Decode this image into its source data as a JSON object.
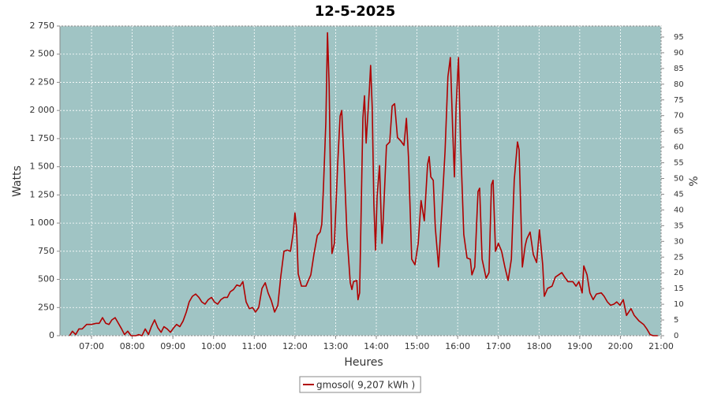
{
  "chart_data": {
    "type": "line",
    "title": "12-5-2025",
    "x_label": "Heures",
    "y_label": "Watts",
    "y2_label": "%",
    "xlim": [
      6.224,
      21.0
    ],
    "xticks": [
      {
        "value": 7,
        "label": "07:00"
      },
      {
        "value": 8,
        "label": "08:00"
      },
      {
        "value": 9,
        "label": "09:00"
      },
      {
        "value": 10,
        "label": "10:00"
      },
      {
        "value": 11,
        "label": "11:00"
      },
      {
        "value": 12,
        "label": "12:00"
      },
      {
        "value": 13,
        "label": "13:00"
      },
      {
        "value": 14,
        "label": "14:00"
      },
      {
        "value": 15,
        "label": "15:00"
      },
      {
        "value": 16,
        "label": "16:00"
      },
      {
        "value": 17,
        "label": "17:00"
      },
      {
        "value": 18,
        "label": "18:00"
      },
      {
        "value": 19,
        "label": "19:00"
      },
      {
        "value": 20,
        "label": "20:00"
      },
      {
        "value": 21,
        "label": "21:00"
      }
    ],
    "ylim": [
      0,
      2750
    ],
    "yticks": [
      0,
      250,
      500,
      750,
      {
        "value": 1000,
        "label": "1 000"
      },
      {
        "value": 1250,
        "label": "1 250"
      },
      {
        "value": 1500,
        "label": "1 500"
      },
      {
        "value": 1750,
        "label": "1 750"
      },
      {
        "value": 2000,
        "label": "2 000"
      },
      {
        "value": 2250,
        "label": "2 250"
      },
      {
        "value": 2500,
        "label": "2 500"
      },
      {
        "value": 2750,
        "label": "2 750"
      }
    ],
    "y2lim": [
      0,
      98.5
    ],
    "y2ticks": [
      0,
      5,
      10,
      15,
      20,
      25,
      30,
      35,
      40,
      45,
      50,
      55,
      60,
      65,
      70,
      75,
      80,
      85,
      90,
      95
    ],
    "grid": true,
    "plot_background": "#a0c4c4",
    "legend": "bottom",
    "x": [
      6.46,
      6.53,
      6.61,
      6.69,
      6.77,
      6.88,
      7.0,
      7.12,
      7.19,
      7.27,
      7.35,
      7.43,
      7.5,
      7.58,
      7.66,
      7.74,
      7.81,
      7.89,
      7.97,
      8.09,
      8.16,
      8.24,
      8.32,
      8.4,
      8.47,
      8.55,
      8.63,
      8.71,
      8.78,
      8.86,
      8.94,
      9.02,
      9.09,
      9.17,
      9.25,
      9.33,
      9.4,
      9.48,
      9.56,
      9.64,
      9.71,
      9.79,
      9.87,
      9.95,
      10.02,
      10.1,
      10.18,
      10.26,
      10.34,
      10.41,
      10.49,
      10.57,
      10.65,
      10.72,
      10.8,
      10.88,
      10.96,
      11.03,
      11.11,
      11.19,
      11.27,
      11.34,
      11.42,
      11.5,
      11.58,
      11.65,
      11.73,
      11.81,
      11.89,
      11.96,
      12.0,
      12.04,
      12.08,
      12.16,
      12.27,
      12.39,
      12.47,
      12.55,
      12.62,
      12.66,
      12.7,
      12.76,
      12.8,
      12.84,
      12.88,
      12.91,
      12.97,
      13.05,
      13.11,
      13.15,
      13.21,
      13.28,
      13.36,
      13.4,
      13.44,
      13.52,
      13.55,
      13.59,
      13.67,
      13.71,
      13.75,
      13.79,
      13.83,
      13.86,
      13.9,
      13.94,
      13.98,
      14.02,
      14.08,
      14.14,
      14.17,
      14.25,
      14.33,
      14.39,
      14.45,
      14.52,
      14.6,
      14.68,
      14.74,
      14.79,
      14.87,
      14.95,
      15.03,
      15.1,
      15.18,
      15.26,
      15.3,
      15.34,
      15.4,
      15.45,
      15.53,
      15.61,
      15.69,
      15.76,
      15.82,
      15.88,
      15.92,
      15.96,
      16.02,
      16.07,
      16.15,
      16.23,
      16.31,
      16.35,
      16.42,
      16.5,
      16.54,
      16.6,
      16.7,
      16.77,
      16.83,
      16.87,
      16.93,
      17.0,
      17.08,
      17.16,
      17.24,
      17.32,
      17.39,
      17.47,
      17.51,
      17.59,
      17.66,
      17.7,
      17.78,
      17.86,
      17.94,
      18.01,
      18.09,
      18.13,
      18.21,
      18.32,
      18.4,
      18.48,
      18.56,
      18.63,
      18.71,
      18.83,
      18.91,
      18.98,
      19.06,
      19.1,
      19.18,
      19.25,
      19.33,
      19.41,
      19.53,
      19.6,
      19.68,
      19.76,
      19.84,
      19.91,
      19.99,
      20.07,
      20.15,
      20.26,
      20.34,
      20.46,
      20.57,
      20.65,
      20.73,
      20.81,
      20.92
    ],
    "series": [
      {
        "name": "gmosol( 9,207 kWh )",
        "color": "#b00000",
        "values": [
          0,
          40,
          10,
          60,
          60,
          100,
          100,
          110,
          110,
          160,
          110,
          100,
          140,
          160,
          110,
          60,
          10,
          40,
          0,
          0,
          10,
          0,
          60,
          10,
          80,
          140,
          70,
          30,
          80,
          60,
          30,
          70,
          100,
          80,
          130,
          210,
          300,
          350,
          370,
          340,
          300,
          280,
          320,
          340,
          300,
          280,
          320,
          340,
          340,
          390,
          410,
          450,
          440,
          480,
          300,
          240,
          250,
          210,
          250,
          420,
          470,
          380,
          310,
          210,
          270,
          520,
          750,
          760,
          750,
          920,
          1090,
          960,
          550,
          440,
          440,
          540,
          730,
          890,
          920,
          990,
          1310,
          1900,
          2690,
          2230,
          1240,
          730,
          820,
          1520,
          1950,
          2000,
          1520,
          890,
          470,
          410,
          480,
          490,
          320,
          380,
          1930,
          2130,
          1710,
          1950,
          2190,
          2400,
          2020,
          1170,
          760,
          1240,
          1510,
          820,
          1030,
          1690,
          1720,
          2040,
          2060,
          1760,
          1730,
          1690,
          1930,
          1590,
          680,
          630,
          820,
          1200,
          1020,
          1520,
          1590,
          1410,
          1380,
          960,
          610,
          1110,
          1640,
          2300,
          2470,
          1800,
          1410,
          2020,
          2470,
          1730,
          900,
          690,
          680,
          540,
          610,
          1280,
          1310,
          680,
          510,
          560,
          1340,
          1380,
          750,
          820,
          750,
          610,
          490,
          680,
          1380,
          1720,
          1650,
          610,
          800,
          860,
          920,
          720,
          650,
          940,
          630,
          350,
          420,
          440,
          520,
          540,
          560,
          520,
          480,
          480,
          440,
          480,
          380,
          620,
          540,
          380,
          320,
          370,
          380,
          350,
          300,
          270,
          280,
          300,
          270,
          320,
          180,
          240,
          180,
          130,
          100,
          60,
          10,
          0,
          0
        ]
      }
    ]
  }
}
